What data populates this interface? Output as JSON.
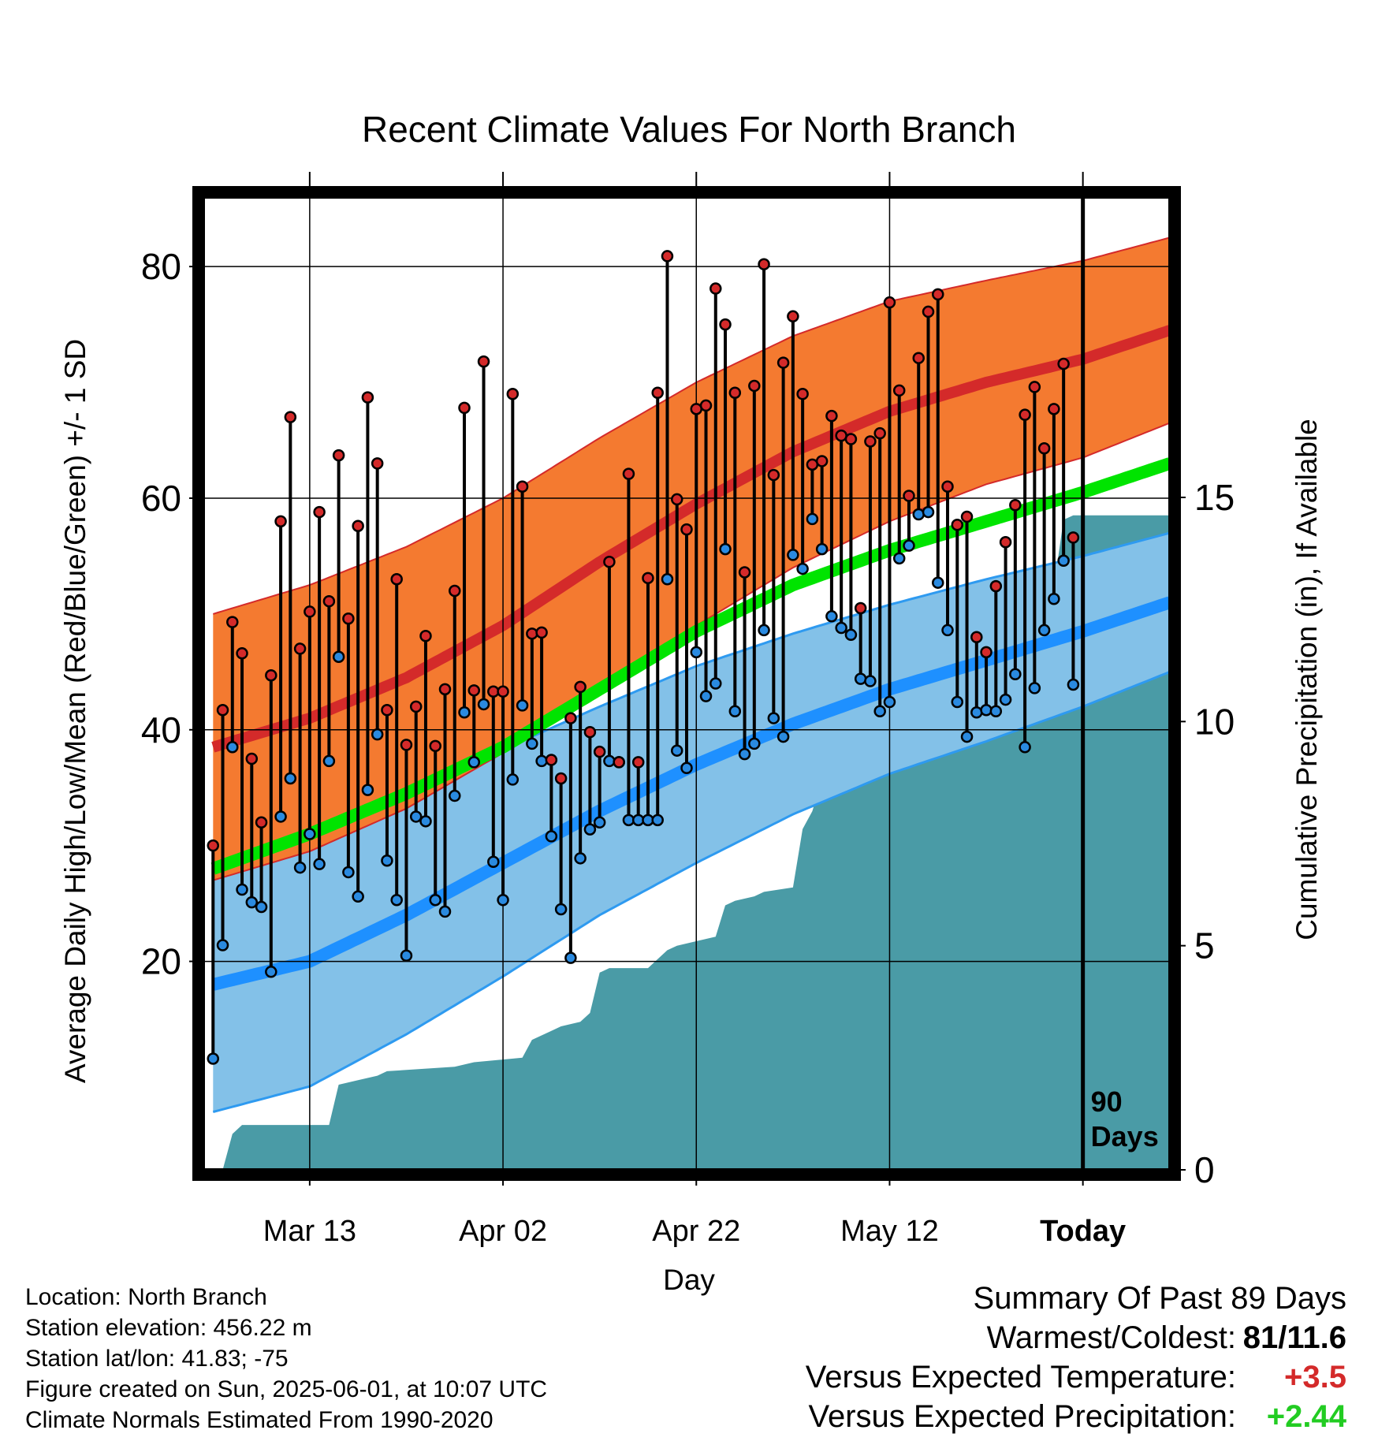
{
  "chart_data": {
    "type": "line",
    "title": "Recent Climate Values For North Branch",
    "xlabel": "Day",
    "ylabel": "Average Daily High/Low/Mean (Red/Blue/Green) +/- 1 SD",
    "y2label": "Cumulative Precipitation (in), If Available",
    "ylim": [
      2,
      86
    ],
    "y2lim": [
      0,
      21.7
    ],
    "xlim": [
      -1,
      99
    ],
    "yticks": [
      80,
      60,
      40,
      20
    ],
    "y2ticks": [
      15,
      10,
      5,
      0
    ],
    "xticks": [
      {
        "day": 10,
        "label": "Mar 13"
      },
      {
        "day": 30,
        "label": "Apr 02"
      },
      {
        "day": 50,
        "label": "Apr 22"
      },
      {
        "day": 70,
        "label": "May 12"
      },
      {
        "day": 90,
        "label": "Today"
      }
    ],
    "today_day": 90,
    "today_annotation": [
      "90",
      "Days"
    ],
    "normals": {
      "day": [
        0,
        10,
        20,
        30,
        40,
        50,
        60,
        70,
        80,
        90,
        99
      ],
      "high": [
        38.5,
        41,
        44.5,
        49,
        54.5,
        59.5,
        64,
        67.5,
        70,
        72,
        74.5
      ],
      "high_sd": [
        11.5,
        11.5,
        11.3,
        11,
        10.7,
        10.5,
        10,
        9.5,
        8.8,
        8.5,
        8
      ],
      "low": [
        18,
        20,
        24,
        28.5,
        33,
        37,
        40.5,
        43.5,
        46,
        48.5,
        51
      ],
      "low_sd": [
        11,
        10.8,
        10.3,
        9.8,
        9,
        8.5,
        7.8,
        7.3,
        7,
        6.5,
        6
      ],
      "mean": [
        28,
        31,
        34.5,
        38.5,
        43.5,
        48.5,
        52.5,
        55.5,
        58,
        60.5,
        63
      ]
    },
    "daily": {
      "high": [
        30,
        41.7,
        49.3,
        46.6,
        37.5,
        32,
        44.7,
        58,
        67,
        47,
        50.2,
        58.8,
        51.1,
        63.7,
        49.6,
        57.6,
        68.7,
        63,
        41.7,
        53,
        38.7,
        42,
        48.1,
        38.6,
        43.5,
        52,
        67.8,
        43.4,
        71.8,
        43.3,
        43.3,
        69,
        61,
        48.3,
        48.4,
        37.4,
        35.8,
        41,
        43.7,
        39.8,
        38.1,
        54.5,
        37.2,
        62.1,
        37.2,
        53.1,
        69.1,
        80.9,
        59.9,
        57.3,
        67.7,
        68,
        78.1,
        75,
        69.1,
        53.6,
        69.7,
        80.2,
        62,
        71.7,
        75.7,
        69,
        62.9,
        63.2,
        67.1,
        65.4,
        65.1,
        50.5,
        64.9,
        65.6,
        76.9,
        69.3,
        60.2,
        72.1,
        76.1,
        77.6,
        61,
        57.7,
        58.4,
        48,
        46.7,
        52.4,
        56.2,
        59.4,
        67.2,
        69.6,
        64.3,
        67.7,
        71.6,
        56.6
      ],
      "low": [
        11.6,
        21.4,
        38.5,
        26.2,
        25.1,
        24.7,
        19.1,
        32.5,
        35.8,
        28.1,
        31,
        28.4,
        37.3,
        46.3,
        27.7,
        25.6,
        34.8,
        39.6,
        28.7,
        25.3,
        20.5,
        32.5,
        32.1,
        25.3,
        24.3,
        34.3,
        41.5,
        37.2,
        42.2,
        28.6,
        25.3,
        35.7,
        42.1,
        38.8,
        37.3,
        30.8,
        24.5,
        20.3,
        28.9,
        31.4,
        32,
        37.3,
        37.2,
        32.2,
        32.2,
        32.2,
        32.2,
        53,
        38.2,
        36.7,
        46.7,
        42.9,
        44,
        55.6,
        41.6,
        37.9,
        38.8,
        48.6,
        41,
        39.4,
        55.1,
        53.9,
        58.2,
        55.6,
        49.8,
        48.8,
        48.2,
        44.4,
        44.2,
        41.6,
        42.4,
        54.8,
        55.9,
        58.6,
        58.8,
        52.7,
        48.6,
        42.4,
        39.4,
        41.5,
        41.7,
        41.6,
        42.6,
        44.8,
        38.5,
        43.6,
        48.6,
        51.3,
        54.6,
        43.9
      ]
    },
    "precip": {
      "day": [
        0,
        1,
        2,
        3,
        12,
        13,
        15,
        17,
        18,
        25,
        27,
        32,
        33,
        35,
        36,
        38,
        39,
        40,
        41,
        45,
        46,
        47,
        48,
        52,
        53,
        54,
        56,
        57,
        60,
        61,
        62,
        63,
        64,
        66,
        67,
        68,
        70,
        71,
        72,
        73,
        74,
        75,
        76,
        78,
        79,
        80,
        81,
        82,
        83,
        87,
        88,
        89,
        90,
        99
      ],
      "value": [
        0,
        0,
        0.8,
        1,
        1,
        1.9,
        2,
        2.1,
        2.2,
        2.3,
        2.4,
        2.5,
        2.9,
        3.1,
        3.2,
        3.3,
        3.5,
        4.4,
        4.5,
        4.5,
        4.7,
        4.9,
        5,
        5.2,
        5.9,
        6,
        6.1,
        6.2,
        6.3,
        7.6,
        8,
        8.7,
        9.1,
        10.3,
        10.5,
        10.6,
        10.8,
        11,
        11.2,
        11.3,
        11.5,
        11.6,
        11.7,
        12,
        12.3,
        12.5,
        12.6,
        12.8,
        12.8,
        13,
        14.5,
        14.6,
        14.6,
        14.6
      ]
    }
  },
  "info": {
    "location": "Location: North Branch",
    "elevation": "Station elevation: 456.22 m",
    "latlon": "Station lat/lon: 41.83; -75",
    "created": "Figure created on Sun, 2025-06-01, at 10:07 UTC",
    "normals": "Climate Normals Estimated From 1990-2020"
  },
  "summary": {
    "heading": "Summary Of Past 89 Days",
    "warm_cold_label": "Warmest/Coldest:",
    "warm_cold_value": "81/11.6",
    "temp_label": "Versus Expected Temperature:",
    "temp_value": "+3.5",
    "precip_label": "Versus Expected Precipitation:",
    "precip_value": "+2.44"
  },
  "colors": {
    "high_band": "#F47A30",
    "high_line": "#D42A2A",
    "low_band": "#83C1E8",
    "low_line": "#1E90FF",
    "low_edge": "#2E9AF0",
    "mean_line": "#00E400",
    "precip_fill": "#4A9BA6",
    "high_dot": "#D42A2A",
    "low_dot": "#2A8AE0",
    "temp_delta": "#D42A2A",
    "precip_delta": "#22CC22"
  }
}
